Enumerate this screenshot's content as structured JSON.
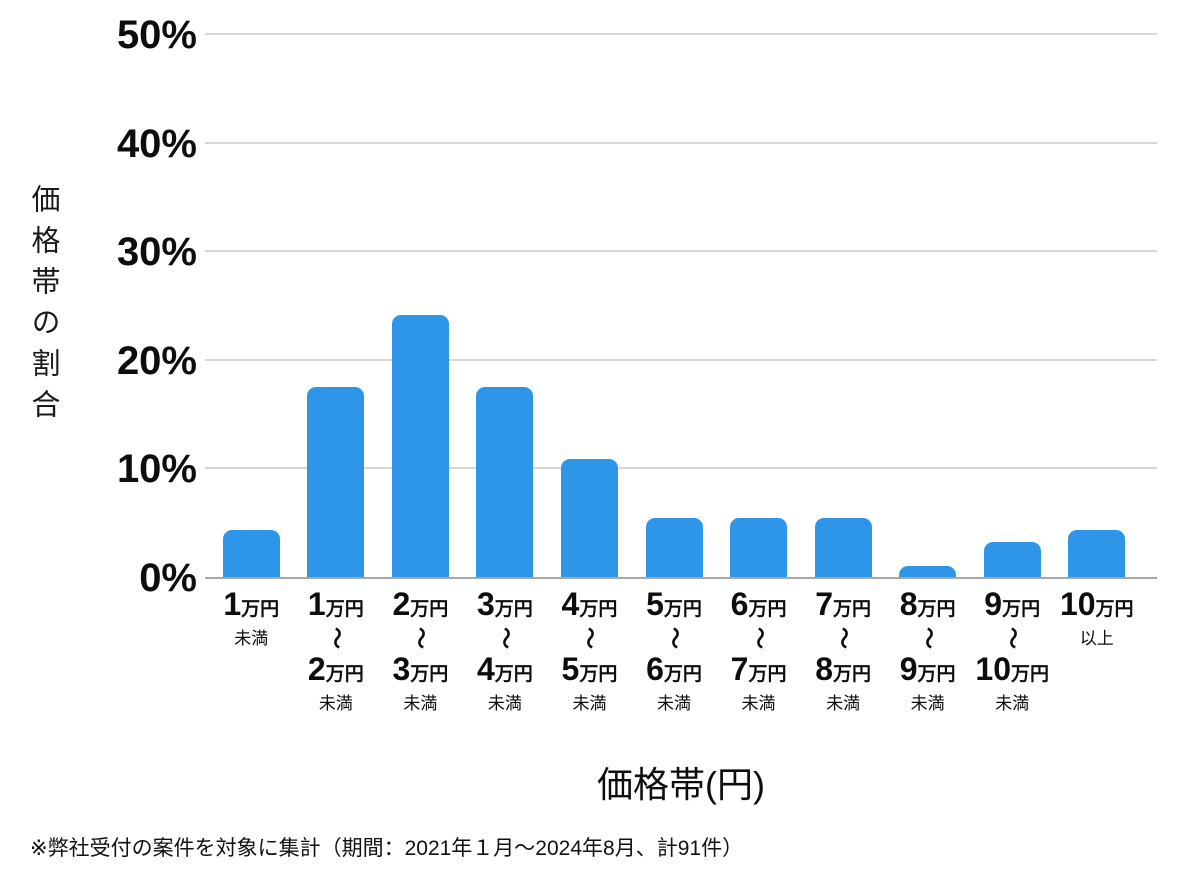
{
  "chart_data": {
    "type": "bar",
    "title": "",
    "xlabel": "価格帯(円)",
    "ylabel": "価格帯の割合",
    "ylim": [
      0,
      50
    ],
    "yticks": [
      "0%",
      "10%",
      "20%",
      "30%",
      "40%",
      "50%"
    ],
    "grid": "horizontal-gridlines-on",
    "legend": "none",
    "bar_color": "#2D96E9",
    "categories": [
      "1万円未満",
      "1万円〜2万円未満",
      "2万円〜3万円未満",
      "3万円〜4万円未満",
      "4万円〜5万円未満",
      "5万円〜6万円未満",
      "6万円〜7万円未満",
      "7万円〜8万円未満",
      "8万円〜9万円未満",
      "9万円〜10万円未満",
      "10万円以上"
    ],
    "values": [
      4.4,
      17.6,
      24.2,
      17.6,
      11.0,
      5.5,
      5.5,
      5.5,
      1.1,
      3.3,
      4.4
    ],
    "category_label_rows": [
      [
        {
          "kind": "amount",
          "num": "1",
          "unit": "万円"
        },
        {
          "kind": "note",
          "text": "未満"
        }
      ],
      [
        {
          "kind": "amount",
          "num": "1",
          "unit": "万円"
        },
        {
          "kind": "tilde",
          "text": "〜"
        },
        {
          "kind": "amount",
          "num": "2",
          "unit": "万円"
        },
        {
          "kind": "note",
          "text": "未満"
        }
      ],
      [
        {
          "kind": "amount",
          "num": "2",
          "unit": "万円"
        },
        {
          "kind": "tilde",
          "text": "〜"
        },
        {
          "kind": "amount",
          "num": "3",
          "unit": "万円"
        },
        {
          "kind": "note",
          "text": "未満"
        }
      ],
      [
        {
          "kind": "amount",
          "num": "3",
          "unit": "万円"
        },
        {
          "kind": "tilde",
          "text": "〜"
        },
        {
          "kind": "amount",
          "num": "4",
          "unit": "万円"
        },
        {
          "kind": "note",
          "text": "未満"
        }
      ],
      [
        {
          "kind": "amount",
          "num": "4",
          "unit": "万円"
        },
        {
          "kind": "tilde",
          "text": "〜"
        },
        {
          "kind": "amount",
          "num": "5",
          "unit": "万円"
        },
        {
          "kind": "note",
          "text": "未満"
        }
      ],
      [
        {
          "kind": "amount",
          "num": "5",
          "unit": "万円"
        },
        {
          "kind": "tilde",
          "text": "〜"
        },
        {
          "kind": "amount",
          "num": "6",
          "unit": "万円"
        },
        {
          "kind": "note",
          "text": "未満"
        }
      ],
      [
        {
          "kind": "amount",
          "num": "6",
          "unit": "万円"
        },
        {
          "kind": "tilde",
          "text": "〜"
        },
        {
          "kind": "amount",
          "num": "7",
          "unit": "万円"
        },
        {
          "kind": "note",
          "text": "未満"
        }
      ],
      [
        {
          "kind": "amount",
          "num": "7",
          "unit": "万円"
        },
        {
          "kind": "tilde",
          "text": "〜"
        },
        {
          "kind": "amount",
          "num": "8",
          "unit": "万円"
        },
        {
          "kind": "note",
          "text": "未満"
        }
      ],
      [
        {
          "kind": "amount",
          "num": "8",
          "unit": "万円"
        },
        {
          "kind": "tilde",
          "text": "〜"
        },
        {
          "kind": "amount",
          "num": "9",
          "unit": "万円"
        },
        {
          "kind": "note",
          "text": "未満"
        }
      ],
      [
        {
          "kind": "amount",
          "num": "9",
          "unit": "万円"
        },
        {
          "kind": "tilde",
          "text": "〜"
        },
        {
          "kind": "amount",
          "num": "10",
          "unit": "万円"
        },
        {
          "kind": "note",
          "text": "未満"
        }
      ],
      [
        {
          "kind": "amount",
          "num": "10",
          "unit": "万円"
        },
        {
          "kind": "note",
          "text": "以上"
        }
      ]
    ]
  },
  "footer": {
    "note": "※弊社受付の案件を対象に集計（期間：2021年１月〜2024年8月、計91件）"
  }
}
